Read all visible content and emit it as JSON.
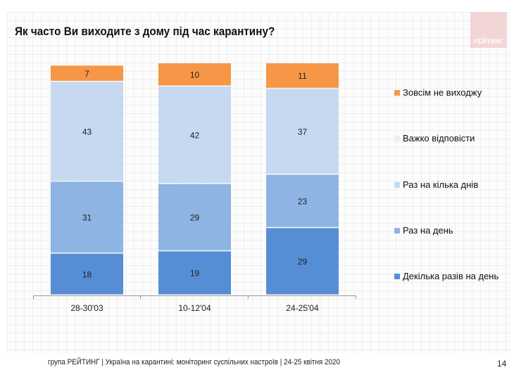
{
  "title": "Як часто Ви виходите з дому під час карантину?",
  "logo_text": "РЕЙТИНГ",
  "footer": "група РЕЙТИНГ | Україна на карантині: моніторинг суспільних настроїв  | 24-25 квітня  2020",
  "page_number": "14",
  "chart_data": {
    "type": "bar",
    "stacked": true,
    "title": "Як часто Ви виходите з дому під час карантину?",
    "categories": [
      "28-30'03",
      "10-12'04",
      "24-25'04"
    ],
    "ylim": [
      0,
      100
    ],
    "legend_position": "right",
    "grid": false,
    "series": [
      {
        "name": "Декілька разів на день",
        "values": [
          18,
          19,
          29
        ],
        "color": "#558ED5"
      },
      {
        "name": "Раз на день",
        "values": [
          31,
          29,
          23
        ],
        "color": "#8EB4E3"
      },
      {
        "name": "Раз на кілька днів",
        "values": [
          43,
          42,
          37
        ],
        "color": "#C6D9F1"
      },
      {
        "name": "Важко відповісти",
        "values": [
          null,
          null,
          null
        ],
        "color": "#EEEEEE"
      },
      {
        "name": "Зовсім не виходжу",
        "values": [
          7,
          10,
          11
        ],
        "color": "#F79646"
      }
    ]
  }
}
